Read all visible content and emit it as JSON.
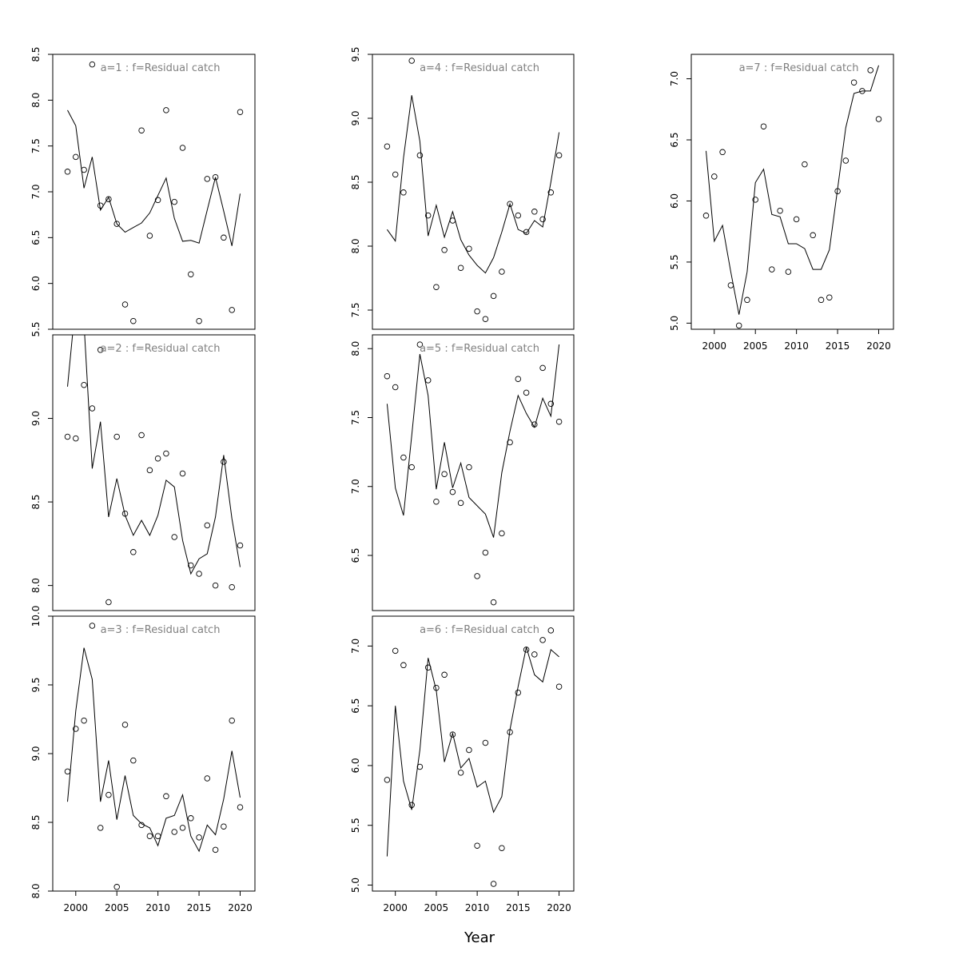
{
  "figure": {
    "xlabel": "Year"
  },
  "chart_data": [
    {
      "type": "line",
      "title": "a=1  :  f=Residual catch",
      "x": [
        1999,
        2000,
        2001,
        2002,
        2003,
        2004,
        2005,
        2006,
        2007,
        2008,
        2009,
        2010,
        2011,
        2012,
        2013,
        2014,
        2015,
        2016,
        2017,
        2018,
        2019,
        2020
      ],
      "series": [
        {
          "kind": "line",
          "values": [
            7.89,
            7.72,
            7.04,
            7.38,
            6.8,
            6.94,
            6.65,
            6.56,
            6.61,
            6.66,
            6.77,
            6.96,
            7.15,
            6.71,
            6.46,
            6.47,
            6.44,
            6.8,
            7.16,
            6.79,
            6.41,
            6.98
          ]
        },
        {
          "kind": "points",
          "values": [
            7.22,
            7.38,
            7.24,
            8.39,
            6.85,
            6.92,
            6.65,
            5.77,
            5.59,
            7.67,
            6.52,
            6.91,
            7.89,
            6.89,
            7.48,
            6.1,
            5.59,
            7.14,
            7.16,
            6.5,
            5.71,
            7.87
          ]
        }
      ],
      "ylim": [
        5.5,
        8.5
      ],
      "yticks": [
        5.5,
        6.0,
        6.5,
        7.0,
        7.5,
        8.0,
        8.5
      ],
      "yticklabels": [
        "5.5",
        "6.0",
        "6.5",
        "7.0",
        "7.5",
        "8.0",
        "8.5"
      ],
      "xlim": [
        1997.2,
        2021.8
      ],
      "xticks": [
        2000,
        2005,
        2010,
        2015,
        2020
      ],
      "xticklabels": [
        "2000",
        "2005",
        "2010",
        "2015",
        "2020"
      ],
      "show_xaxis": false
    },
    {
      "type": "line",
      "title": "a=2  :  f=Residual catch",
      "x": [
        1999,
        2000,
        2001,
        2002,
        2003,
        2004,
        2005,
        2006,
        2007,
        2008,
        2009,
        2010,
        2011,
        2012,
        2013,
        2014,
        2015,
        2016,
        2017,
        2018,
        2019,
        2020
      ],
      "series": [
        {
          "kind": "line",
          "values": [
            9.19,
            9.7,
            9.57,
            8.7,
            8.98,
            8.41,
            8.64,
            8.42,
            8.3,
            8.39,
            8.3,
            8.42,
            8.63,
            8.59,
            8.27,
            8.07,
            8.16,
            8.19,
            8.41,
            8.78,
            8.4,
            8.11
          ]
        },
        {
          "kind": "points",
          "values": [
            8.89,
            8.88,
            9.2,
            9.06,
            9.41,
            7.9,
            8.89,
            8.43,
            8.2,
            8.9,
            8.69,
            8.76,
            8.79,
            8.29,
            8.67,
            8.12,
            8.07,
            8.36,
            8.0,
            8.74,
            7.99,
            8.24
          ]
        }
      ],
      "ylim": [
        7.85,
        9.5
      ],
      "yticks": [
        8.0,
        8.5,
        9.0
      ],
      "yticklabels": [
        "8.0",
        "8.5",
        "9.0"
      ],
      "xlim": [
        1997.2,
        2021.8
      ],
      "xticks": [
        2000,
        2005,
        2010,
        2015,
        2020
      ],
      "xticklabels": [
        "2000",
        "2005",
        "2010",
        "2015",
        "2020"
      ],
      "show_xaxis": false
    },
    {
      "type": "line",
      "title": "a=3  :  f=Residual catch",
      "x": [
        1999,
        2000,
        2001,
        2002,
        2003,
        2004,
        2005,
        2006,
        2007,
        2008,
        2009,
        2010,
        2011,
        2012,
        2013,
        2014,
        2015,
        2016,
        2017,
        2018,
        2019,
        2020
      ],
      "series": [
        {
          "kind": "line",
          "values": [
            8.65,
            9.31,
            9.77,
            9.54,
            8.65,
            8.95,
            8.52,
            8.84,
            8.55,
            8.49,
            8.46,
            8.33,
            8.53,
            8.55,
            8.7,
            8.4,
            8.29,
            8.48,
            8.41,
            8.67,
            9.02,
            8.68
          ]
        },
        {
          "kind": "points",
          "values": [
            8.87,
            9.18,
            9.24,
            9.93,
            8.46,
            8.7,
            8.03,
            9.21,
            8.95,
            8.48,
            8.4,
            8.4,
            8.69,
            8.43,
            8.46,
            8.53,
            8.39,
            8.82,
            8.3,
            8.47,
            9.24,
            8.61
          ]
        }
      ],
      "ylim": [
        8.0,
        10.0
      ],
      "yticks": [
        8.0,
        8.5,
        9.0,
        9.5,
        10.0
      ],
      "yticklabels": [
        "8.0",
        "8.5",
        "9.0",
        "9.5",
        "10.0"
      ],
      "xlim": [
        1997.2,
        2021.8
      ],
      "xticks": [
        2000,
        2005,
        2010,
        2015,
        2020
      ],
      "xticklabels": [
        "2000",
        "2005",
        "2010",
        "2015",
        "2020"
      ],
      "show_xaxis": true
    },
    {
      "type": "line",
      "title": "a=4  :  f=Residual catch",
      "x": [
        1999,
        2000,
        2001,
        2002,
        2003,
        2004,
        2005,
        2006,
        2007,
        2008,
        2009,
        2010,
        2011,
        2012,
        2013,
        2014,
        2015,
        2016,
        2017,
        2018,
        2019,
        2020
      ],
      "series": [
        {
          "kind": "line",
          "values": [
            8.13,
            8.04,
            8.69,
            9.18,
            8.82,
            8.08,
            8.32,
            8.07,
            8.27,
            8.05,
            7.93,
            7.85,
            7.79,
            7.91,
            8.11,
            8.33,
            8.13,
            8.1,
            8.2,
            8.15,
            8.5,
            8.89
          ]
        },
        {
          "kind": "points",
          "values": [
            8.78,
            8.56,
            8.42,
            9.45,
            8.71,
            8.24,
            7.68,
            7.97,
            8.2,
            7.83,
            7.98,
            7.49,
            7.43,
            7.61,
            7.8,
            8.33,
            8.24,
            8.11,
            8.27,
            8.21,
            8.42,
            8.71
          ]
        }
      ],
      "ylim": [
        7.35,
        9.5
      ],
      "yticks": [
        7.5,
        8.0,
        8.5,
        9.0,
        9.5
      ],
      "yticklabels": [
        "7.5",
        "8.0",
        "8.5",
        "9.0",
        "9.5"
      ],
      "xlim": [
        1997.2,
        2021.8
      ],
      "xticks": [
        2000,
        2005,
        2010,
        2015,
        2020
      ],
      "xticklabels": [
        "2000",
        "2005",
        "2010",
        "2015",
        "2020"
      ],
      "show_xaxis": false
    },
    {
      "type": "line",
      "title": "a=5  :  f=Residual catch",
      "x": [
        1999,
        2000,
        2001,
        2002,
        2003,
        2004,
        2005,
        2006,
        2007,
        2008,
        2009,
        2010,
        2011,
        2012,
        2013,
        2014,
        2015,
        2016,
        2017,
        2018,
        2019,
        2020
      ],
      "series": [
        {
          "kind": "line",
          "values": [
            7.6,
            6.99,
            6.79,
            7.37,
            7.96,
            7.66,
            6.98,
            7.32,
            6.99,
            7.17,
            6.92,
            6.86,
            6.8,
            6.63,
            7.1,
            7.4,
            7.66,
            7.53,
            7.43,
            7.64,
            7.51,
            8.03
          ]
        },
        {
          "kind": "points",
          "values": [
            7.8,
            7.72,
            7.21,
            7.14,
            8.03,
            7.77,
            6.89,
            7.09,
            6.96,
            6.88,
            7.14,
            6.35,
            6.52,
            6.16,
            6.66,
            7.32,
            7.78,
            7.68,
            7.45,
            7.86,
            7.6,
            7.47
          ]
        }
      ],
      "ylim": [
        6.1,
        8.1
      ],
      "yticks": [
        6.5,
        7.0,
        7.5,
        8.0
      ],
      "yticklabels": [
        "6.5",
        "7.0",
        "7.5",
        "8.0"
      ],
      "xlim": [
        1997.2,
        2021.8
      ],
      "xticks": [
        2000,
        2005,
        2010,
        2015,
        2020
      ],
      "xticklabels": [
        "2000",
        "2005",
        "2010",
        "2015",
        "2020"
      ],
      "show_xaxis": false
    },
    {
      "type": "line",
      "title": "a=6  :  f=Residual catch",
      "x": [
        1999,
        2000,
        2001,
        2002,
        2003,
        2004,
        2005,
        2006,
        2007,
        2008,
        2009,
        2010,
        2011,
        2012,
        2013,
        2014,
        2015,
        2016,
        2017,
        2018,
        2019,
        2020
      ],
      "series": [
        {
          "kind": "line",
          "values": [
            5.24,
            6.5,
            5.87,
            5.63,
            6.13,
            6.9,
            6.63,
            6.03,
            6.27,
            5.98,
            6.06,
            5.82,
            5.87,
            5.61,
            5.74,
            6.3,
            6.66,
            6.99,
            6.76,
            6.7,
            6.97,
            6.91
          ]
        },
        {
          "kind": "points",
          "values": [
            5.88,
            6.96,
            6.84,
            5.67,
            5.99,
            6.82,
            6.65,
            6.76,
            6.26,
            5.94,
            6.13,
            5.33,
            6.19,
            5.01,
            5.31,
            6.28,
            6.61,
            6.97,
            6.93,
            7.05,
            7.13,
            6.66
          ]
        }
      ],
      "ylim": [
        4.95,
        7.25
      ],
      "yticks": [
        5.0,
        5.5,
        6.0,
        6.5,
        7.0
      ],
      "yticklabels": [
        "5.0",
        "5.5",
        "6.0",
        "6.5",
        "7.0"
      ],
      "xlim": [
        1997.2,
        2021.8
      ],
      "xticks": [
        2000,
        2005,
        2010,
        2015,
        2020
      ],
      "xticklabels": [
        "2000",
        "2005",
        "2010",
        "2015",
        "2020"
      ],
      "show_xaxis": true
    },
    {
      "type": "line",
      "title": "a=7  :  f=Residual catch",
      "x": [
        1999,
        2000,
        2001,
        2002,
        2003,
        2004,
        2005,
        2006,
        2007,
        2008,
        2009,
        2010,
        2011,
        2012,
        2013,
        2014,
        2015,
        2016,
        2017,
        2018,
        2019,
        2020
      ],
      "series": [
        {
          "kind": "line",
          "values": [
            6.41,
            5.67,
            5.8,
            5.42,
            5.07,
            5.42,
            6.15,
            6.26,
            5.89,
            5.87,
            5.65,
            5.65,
            5.61,
            5.44,
            5.44,
            5.6,
            6.1,
            6.6,
            6.88,
            6.9,
            6.9,
            7.11
          ]
        },
        {
          "kind": "points",
          "values": [
            5.88,
            6.2,
            6.4,
            5.31,
            4.98,
            5.19,
            6.01,
            6.61,
            5.44,
            5.92,
            5.42,
            5.85,
            6.3,
            5.72,
            5.19,
            5.21,
            6.08,
            6.33,
            6.97,
            6.9,
            7.07,
            6.67
          ]
        }
      ],
      "ylim": [
        4.95,
        7.2
      ],
      "yticks": [
        5.0,
        5.5,
        6.0,
        6.5,
        7.0
      ],
      "yticklabels": [
        "5.0",
        "5.5",
        "6.0",
        "6.5",
        "7.0"
      ],
      "xlim": [
        1997.2,
        2021.8
      ],
      "xticks": [
        2000,
        2005,
        2010,
        2015,
        2020
      ],
      "xticklabels": [
        "2000",
        "2005",
        "2010",
        "2015",
        "2020"
      ],
      "show_xaxis": true
    }
  ]
}
